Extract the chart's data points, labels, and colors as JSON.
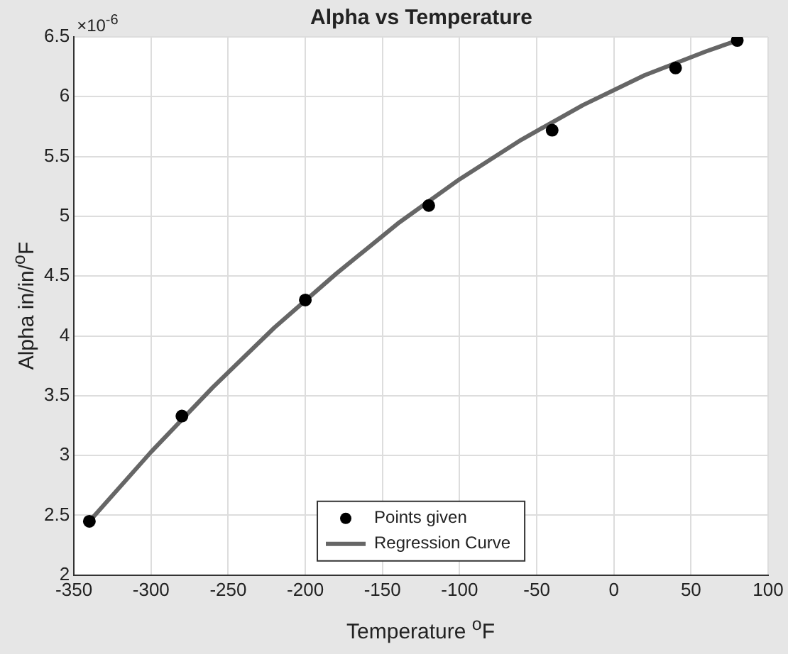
{
  "chart_data": {
    "type": "scatter",
    "title": "Alpha vs Temperature",
    "xlabel": "Temperature $^{o}$F",
    "ylabel": "Alpha in/in/$^{o}$F",
    "annotations": [
      "×10$^{-6}$"
    ],
    "xlim": [
      -350,
      100
    ],
    "xticks": [
      -350,
      -300,
      -250,
      -200,
      -150,
      -100,
      -50,
      0,
      50,
      100
    ],
    "ylim": [
      2,
      6.5
    ],
    "yticks": [
      2,
      2.5,
      3,
      3.5,
      4,
      4.5,
      5,
      5.5,
      6,
      6.5
    ],
    "grid": true,
    "legend": "bottom",
    "series": [
      {
        "name": "Points given",
        "marker": "circle",
        "color": "#000000",
        "x": [
          -340,
          -280,
          -200,
          -120,
          -40,
          40,
          80
        ],
        "values": [
          2.45,
          3.33,
          4.3,
          5.09,
          5.72,
          6.24,
          6.47
        ]
      },
      {
        "name": "Regression Curve",
        "type": "line",
        "marker": "none",
        "color": "#666666",
        "line_style": "solid",
        "x": [
          -340,
          -300,
          -260,
          -220,
          -180,
          -140,
          -100,
          -60,
          -20,
          20,
          60,
          80
        ],
        "values": [
          2.45,
          3.03,
          3.57,
          4.07,
          4.52,
          4.94,
          5.31,
          5.64,
          5.93,
          6.18,
          6.38,
          6.47
        ]
      }
    ]
  }
}
